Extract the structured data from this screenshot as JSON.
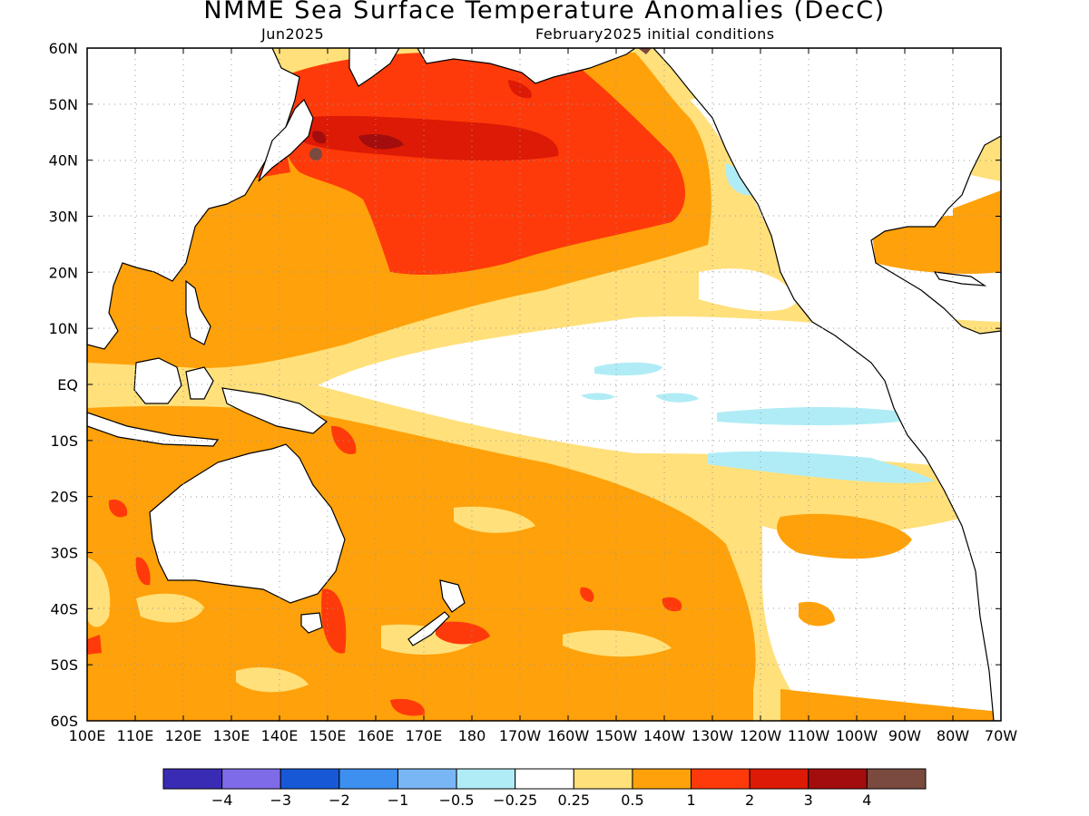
{
  "title": "NMME Sea Surface Temperature Anomalies (DecC)",
  "subtitle_left": "Jun2025",
  "subtitle_right": "February2025 initial conditions",
  "map": {
    "lon_range": [
      100,
      290
    ],
    "lat_range": [
      -60,
      60
    ],
    "x_ticks": [
      "100E",
      "110E",
      "120E",
      "130E",
      "140E",
      "150E",
      "160E",
      "170E",
      "180",
      "170W",
      "160W",
      "150W",
      "140W",
      "130W",
      "120W",
      "110W",
      "100W",
      "90W",
      "80W",
      "70W"
    ],
    "y_ticks": [
      "60N",
      "50N",
      "40N",
      "30N",
      "20N",
      "10N",
      "EQ",
      "10S",
      "20S",
      "30S",
      "40S",
      "50S",
      "60S"
    ],
    "grid": true
  },
  "colorbar": {
    "labels": [
      "−4",
      "−3",
      "−2",
      "−1",
      "−0.5",
      "−0.25",
      "0.25",
      "0.5",
      "1",
      "2",
      "3",
      "4"
    ],
    "colors": [
      "#3a2bb5",
      "#7e6be8",
      "#1758d6",
      "#3d8ff0",
      "#79b6f5",
      "#b0ecf5",
      "#ffffff",
      "#ffe07a",
      "#ffa10a",
      "#ff3a0a",
      "#dd1a05",
      "#a30d0d",
      "#7a4a3f"
    ]
  }
}
